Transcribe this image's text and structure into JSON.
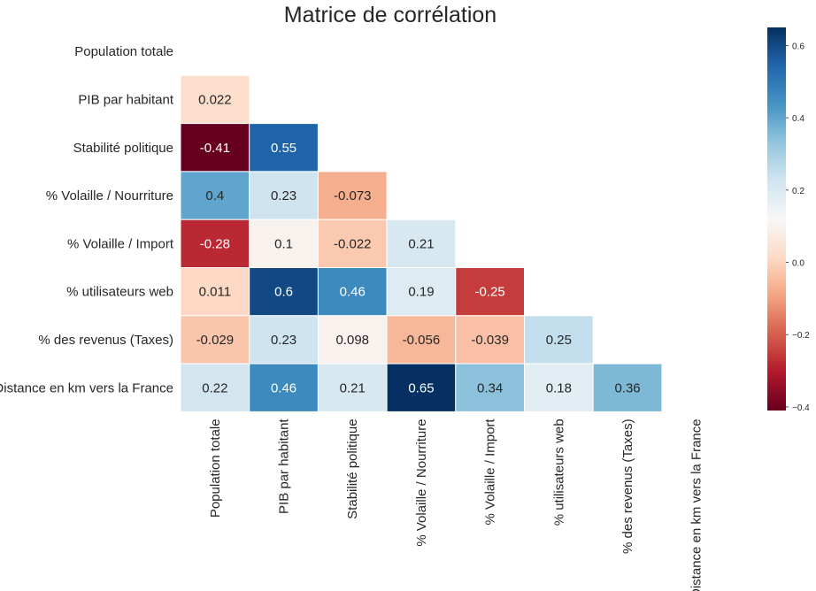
{
  "chart_data": {
    "type": "heatmap",
    "title": "Matrice de corrélation",
    "labels": [
      "Population totale",
      "PIB par habitant",
      "Stabilité politique",
      "% Volaille / Nourriture",
      "% Volaille / Import",
      "% utilisateurs web",
      "% des revenus (Taxes)",
      "Distance en km vers la France"
    ],
    "value_labels": [
      [],
      [
        "0.022"
      ],
      [
        "-0.41",
        "0.55"
      ],
      [
        "0.4",
        "0.23",
        "-0.073"
      ],
      [
        "-0.28",
        "0.1",
        "-0.022",
        "0.21"
      ],
      [
        "0.011",
        "0.6",
        "0.46",
        "0.19",
        "-0.25"
      ],
      [
        "-0.029",
        "0.23",
        "0.098",
        "-0.056",
        "-0.039",
        "0.25"
      ],
      [
        "0.22",
        "0.46",
        "0.21",
        "0.65",
        "0.34",
        "0.18",
        "0.36"
      ]
    ],
    "mask": "upper-triangle-including-diagonal",
    "colormap": "RdBu",
    "colorbar": {
      "range": [
        -0.41,
        0.65
      ],
      "ticks": [
        -0.4,
        -0.2,
        0.0,
        0.2,
        0.4,
        0.6
      ],
      "tick_labels": [
        "−0.4",
        "−0.2",
        "0.0",
        "0.2",
        "0.4",
        "0.6"
      ]
    },
    "grid": false
  }
}
